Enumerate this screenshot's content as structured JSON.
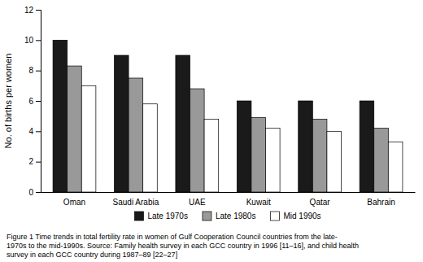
{
  "chart_data": {
    "type": "bar",
    "categories": [
      "Oman",
      "Saudi Arabia",
      "UAE",
      "Kuwait",
      "Qatar",
      "Bahrain"
    ],
    "series": [
      {
        "name": "Late 1970s",
        "color": "#1a1a1a",
        "values": [
          10.0,
          9.0,
          9.0,
          6.0,
          6.0,
          6.0
        ]
      },
      {
        "name": "Late 1980s",
        "color": "#999999",
        "values": [
          8.3,
          7.5,
          6.8,
          4.9,
          4.8,
          4.2
        ]
      },
      {
        "name": "Mid 1990s",
        "color": "#ffffff",
        "values": [
          7.0,
          5.8,
          4.8,
          4.2,
          4.0,
          3.3
        ]
      }
    ],
    "ylabel": "No. of births per women",
    "ylim": [
      0,
      12
    ],
    "yticks": [
      0,
      2,
      4,
      6,
      8,
      10,
      12
    ],
    "grid": false,
    "legend": "bottom",
    "annotations": [
      "Figure 1 Time trends in total fertility rate in women of Gulf Cooperation Council countries from the late-",
      "1970s to the mid-1990s. Source: Family health survey in each GCC country in 1996 [11–16], and child health",
      "survey in each GCC country during 1987–89 [22–27]"
    ]
  }
}
